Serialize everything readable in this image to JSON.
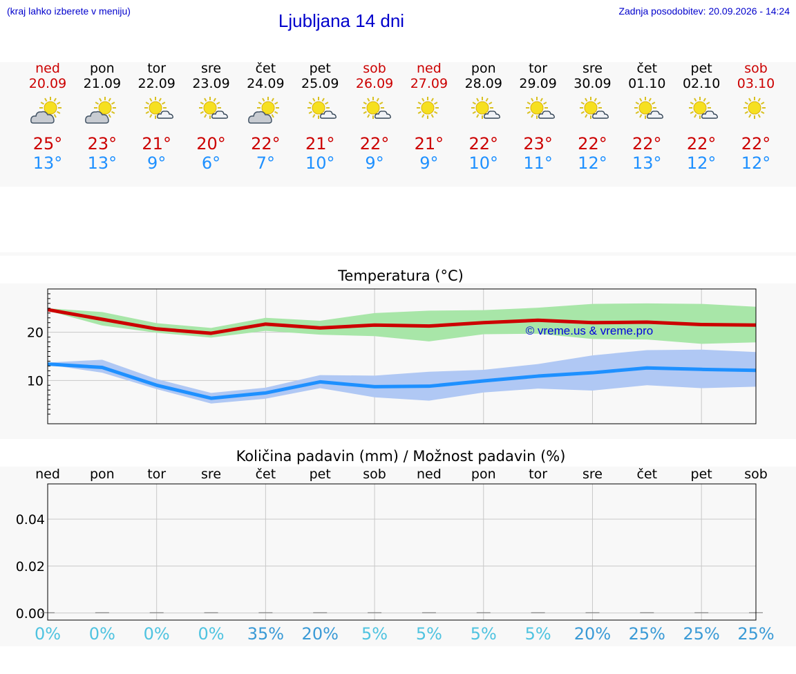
{
  "header": {
    "hint": "(kraj lahko izberete v meniju)",
    "title": "Ljubljana 14 dni",
    "updated": "Zadnja posodobitev: 20.09.2026 - 14:24"
  },
  "colors": {
    "weekend": "#cc0000",
    "max": "#cc0000",
    "min": "#1e90ff",
    "max_band": "#a8e6a8",
    "min_band": "#b0c8f4",
    "prob": "#4fc3e0"
  },
  "days": [
    {
      "name": "ned",
      "date": "20.09",
      "weekend": true,
      "icon": "partly-cloudy-heavy-icon",
      "cloudy": true,
      "max": "25°",
      "min": "13°"
    },
    {
      "name": "pon",
      "date": "21.09",
      "weekend": false,
      "icon": "partly-cloudy-heavy-icon",
      "cloudy": true,
      "max": "23°",
      "min": "13°"
    },
    {
      "name": "tor",
      "date": "22.09",
      "weekend": false,
      "icon": "sun-small-cloud-icon",
      "cloudy": false,
      "max": "21°",
      "min": "9°"
    },
    {
      "name": "sre",
      "date": "23.09",
      "weekend": false,
      "icon": "sun-small-cloud-icon",
      "cloudy": false,
      "max": "20°",
      "min": "6°"
    },
    {
      "name": "čet",
      "date": "24.09",
      "weekend": false,
      "icon": "partly-cloudy-heavy-icon",
      "cloudy": true,
      "max": "22°",
      "min": "7°"
    },
    {
      "name": "pet",
      "date": "25.09",
      "weekend": false,
      "icon": "sun-small-cloud-icon",
      "cloudy": false,
      "max": "21°",
      "min": "10°"
    },
    {
      "name": "sob",
      "date": "26.09",
      "weekend": true,
      "icon": "sun-small-cloud-icon",
      "cloudy": false,
      "max": "22°",
      "min": "9°"
    },
    {
      "name": "ned",
      "date": "27.09",
      "weekend": true,
      "icon": "sun-icon",
      "cloudy": false,
      "max": "21°",
      "min": "9°"
    },
    {
      "name": "pon",
      "date": "28.09",
      "weekend": false,
      "icon": "sun-small-cloud-icon",
      "cloudy": false,
      "max": "22°",
      "min": "10°"
    },
    {
      "name": "tor",
      "date": "29.09",
      "weekend": false,
      "icon": "sun-small-cloud-icon",
      "cloudy": false,
      "max": "23°",
      "min": "11°"
    },
    {
      "name": "sre",
      "date": "30.09",
      "weekend": false,
      "icon": "sun-small-cloud-icon",
      "cloudy": false,
      "max": "22°",
      "min": "12°"
    },
    {
      "name": "čet",
      "date": "01.10",
      "weekend": false,
      "icon": "sun-small-cloud-icon",
      "cloudy": false,
      "max": "22°",
      "min": "13°"
    },
    {
      "name": "pet",
      "date": "02.10",
      "weekend": false,
      "icon": "sun-small-cloud-icon",
      "cloudy": false,
      "max": "22°",
      "min": "12°"
    },
    {
      "name": "sob",
      "date": "03.10",
      "weekend": true,
      "icon": "sun-icon",
      "cloudy": false,
      "max": "22°",
      "min": "12°"
    }
  ],
  "chart_data": [
    {
      "type": "line",
      "title": "Temperatura (°C)",
      "watermark": "© vreme.us & vreme.pro",
      "ylim": [
        1,
        29
      ],
      "yticks": [
        10,
        20
      ],
      "grid": true,
      "x_count": 14,
      "series": [
        {
          "kind": "max",
          "values": [
            24.7,
            22.7,
            20.7,
            19.8,
            21.7,
            20.9,
            21.5,
            21.3,
            22.0,
            22.5,
            22.0,
            22.1,
            21.6,
            21.5
          ],
          "band_low": [
            24.5,
            21.4,
            19.9,
            18.9,
            20.3,
            19.5,
            19.2,
            18.1,
            19.6,
            19.7,
            18.6,
            18.5,
            17.6,
            17.9
          ],
          "band_high": [
            25.0,
            24.2,
            21.9,
            20.9,
            23.0,
            22.4,
            24.0,
            24.5,
            24.6,
            25.1,
            25.9,
            26.0,
            25.9,
            25.3
          ]
        },
        {
          "kind": "min",
          "values": [
            13.4,
            12.7,
            9.0,
            6.3,
            7.4,
            9.7,
            8.7,
            8.8,
            9.9,
            10.9,
            11.6,
            12.6,
            12.3,
            12.1
          ],
          "band_low": [
            13.3,
            11.6,
            8.2,
            5.2,
            6.2,
            8.4,
            6.5,
            5.8,
            7.5,
            8.3,
            7.9,
            9.0,
            8.4,
            8.7
          ],
          "band_high": [
            13.7,
            14.3,
            10.3,
            7.4,
            8.5,
            11.1,
            11.0,
            11.8,
            12.2,
            13.4,
            15.2,
            16.3,
            16.4,
            15.9
          ]
        }
      ]
    },
    {
      "type": "bar",
      "title": "Količina padavin (mm) / Možnost padavin (%)",
      "categories": [
        "ned",
        "pon",
        "tor",
        "sre",
        "čet",
        "pet",
        "sob",
        "ned",
        "pon",
        "tor",
        "sre",
        "čet",
        "pet",
        "sob"
      ],
      "values": [
        0,
        0,
        0,
        0,
        0,
        0,
        0,
        0,
        0,
        0,
        0,
        0,
        0,
        0
      ],
      "ylim": [
        -0.003,
        0.055
      ],
      "yticks": [
        "0.00",
        "0.02",
        "0.04"
      ],
      "ytick_values": [
        0,
        0.02,
        0.04
      ],
      "probability": [
        "0%",
        "0%",
        "0%",
        "0%",
        "35%",
        "20%",
        "5%",
        "5%",
        "5%",
        "5%",
        "20%",
        "25%",
        "25%",
        "25%"
      ],
      "probability_values": [
        0,
        0,
        0,
        0,
        35,
        20,
        5,
        5,
        5,
        5,
        20,
        25,
        25,
        25
      ]
    }
  ]
}
